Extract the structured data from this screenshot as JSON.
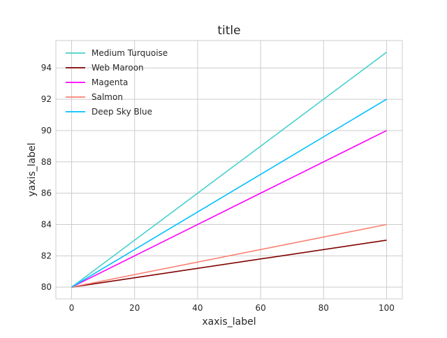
{
  "chart_data": {
    "type": "line",
    "title": "title",
    "xlabel": "xaxis_label",
    "ylabel": "yaxis_label",
    "x": [
      0,
      100
    ],
    "xlim": [
      -5,
      105
    ],
    "ylim": [
      79.25,
      95.75
    ],
    "xticks": [
      0,
      20,
      40,
      60,
      80,
      100
    ],
    "yticks": [
      80,
      82,
      84,
      86,
      88,
      90,
      92,
      94
    ],
    "grid": true,
    "legend_position": "top-left",
    "series": [
      {
        "name": "Medium Turquoise",
        "color": "#48D1CC",
        "values": [
          80,
          95
        ]
      },
      {
        "name": "Web Maroon",
        "color": "#800000",
        "values": [
          80,
          83
        ]
      },
      {
        "name": "Magenta",
        "color": "#FF00FF",
        "values": [
          80,
          90
        ]
      },
      {
        "name": "Salmon",
        "color": "#FA8072",
        "values": [
          80,
          84
        ]
      },
      {
        "name": "Deep Sky Blue",
        "color": "#00BFFF",
        "values": [
          80,
          92
        ]
      }
    ]
  }
}
